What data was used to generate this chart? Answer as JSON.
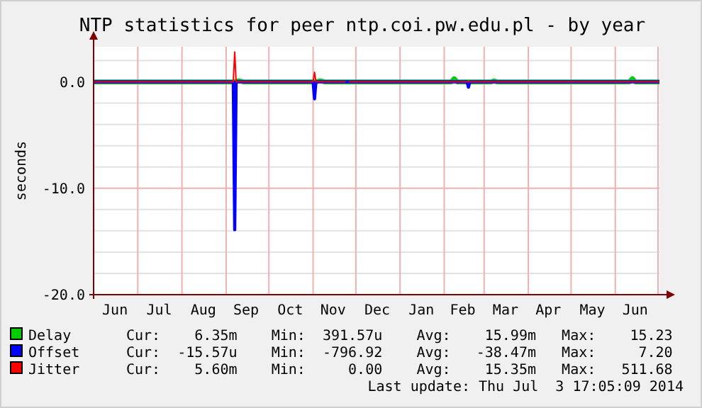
{
  "chart_data": {
    "type": "line",
    "title": "NTP statistics for peer ntp.coi.pw.edu.pl - by year",
    "ylabel": "seconds",
    "xlim": [
      "2013-05-31",
      "2014-07-02"
    ],
    "xticks": [
      {
        "value": "2013-07-01",
        "label": null
      },
      {
        "value": "2013-08-01",
        "label": null
      },
      {
        "value": "2013-09-01",
        "label": null
      },
      {
        "value": "2013-10-01",
        "label": null
      },
      {
        "value": "2013-11-01",
        "label": null
      },
      {
        "value": "2013-12-01",
        "label": null
      },
      {
        "value": "2014-01-01",
        "label": null
      },
      {
        "value": "2014-02-01",
        "label": null
      },
      {
        "value": "2014-03-01",
        "label": null
      },
      {
        "value": "2014-04-01",
        "label": null
      },
      {
        "value": "2014-05-01",
        "label": null
      },
      {
        "value": "2014-06-01",
        "label": null
      },
      {
        "value": "2014-07-01",
        "label": null
      },
      {
        "value": "2013-06-15",
        "label": "Jun"
      },
      {
        "value": "2013-07-16",
        "label": "Jul"
      },
      {
        "value": "2013-08-16",
        "label": "Aug"
      },
      {
        "value": "2013-09-15",
        "label": "Sep"
      },
      {
        "value": "2013-10-16",
        "label": "Oct"
      },
      {
        "value": "2013-11-15",
        "label": "Nov"
      },
      {
        "value": "2013-12-16",
        "label": "Dec"
      },
      {
        "value": "2014-01-16",
        "label": "Jan"
      },
      {
        "value": "2014-02-14",
        "label": "Feb"
      },
      {
        "value": "2014-03-16",
        "label": "Mar"
      },
      {
        "value": "2014-04-15",
        "label": "Apr"
      },
      {
        "value": "2014-05-16",
        "label": "May"
      },
      {
        "value": "2014-06-15",
        "label": "Jun"
      }
    ],
    "ylim": [
      -20,
      3.3
    ],
    "yticks": [
      {
        "value": -20,
        "label": "-20.0"
      },
      {
        "value": -18,
        "label": null
      },
      {
        "value": -16,
        "label": null
      },
      {
        "value": -14,
        "label": null
      },
      {
        "value": -12,
        "label": null
      },
      {
        "value": -10,
        "label": "-10.0"
      },
      {
        "value": -8,
        "label": null
      },
      {
        "value": -6,
        "label": null
      },
      {
        "value": -4,
        "label": null
      },
      {
        "value": -2,
        "label": null
      },
      {
        "value": 0,
        "label": "0.0"
      },
      {
        "value": 2,
        "label": null
      }
    ],
    "grid": true,
    "legend": "bottom",
    "marker": "none",
    "line_style": "solid",
    "series": [
      {
        "name": "Delay",
        "color": "#00cc00",
        "x": [
          "2013-05-31",
          "2013-09-06",
          "2013-09-10",
          "2013-09-13",
          "2013-11-03",
          "2013-11-06",
          "2013-11-09",
          "2014-02-06",
          "2014-02-08",
          "2014-02-10",
          "2014-03-06",
          "2014-03-08",
          "2014-03-10",
          "2014-06-11",
          "2014-06-13",
          "2014-06-15",
          "2014-07-02"
        ],
        "values": [
          0,
          0,
          0.1,
          0,
          0,
          0.1,
          0,
          0,
          0.3,
          0,
          0,
          0.1,
          0,
          0,
          0.3,
          0,
          0
        ]
      },
      {
        "name": "Offset",
        "color": "#0000ff",
        "x": [
          "2013-05-31",
          "2013-09-06",
          "2013-09-07",
          "2013-09-08",
          "2013-11-01",
          "2013-11-02",
          "2013-11-03",
          "2014-02-17",
          "2014-02-18",
          "2014-02-19",
          "2014-07-02"
        ],
        "values": [
          0,
          0,
          -13.9,
          0,
          0,
          -1.6,
          0,
          0,
          -0.5,
          0,
          0
        ]
      },
      {
        "name": "Jitter",
        "color": "#ff0000",
        "x": [
          "2013-05-31",
          "2013-09-06",
          "2013-09-07",
          "2013-09-08",
          "2013-11-01",
          "2013-11-02",
          "2013-11-03",
          "2013-11-24",
          "2013-11-25",
          "2013-11-26",
          "2014-07-02"
        ],
        "values": [
          0,
          0,
          2.8,
          0,
          0,
          0.9,
          0,
          0,
          null,
          0,
          0
        ]
      }
    ],
    "annotations": [
      "Cur:    6.35m    Min:  391.57u    Avg:    15.99m   Max:    15.23",
      "Cur:  -15.57u    Min:  -796.92    Avg:   -38.47m   Max:     7.20",
      "Cur:    5.60m    Min:     0.00    Avg:    15.35m   Max:   511.68",
      "Last update: Thu Jul  3 17:05:09 2014"
    ]
  }
}
